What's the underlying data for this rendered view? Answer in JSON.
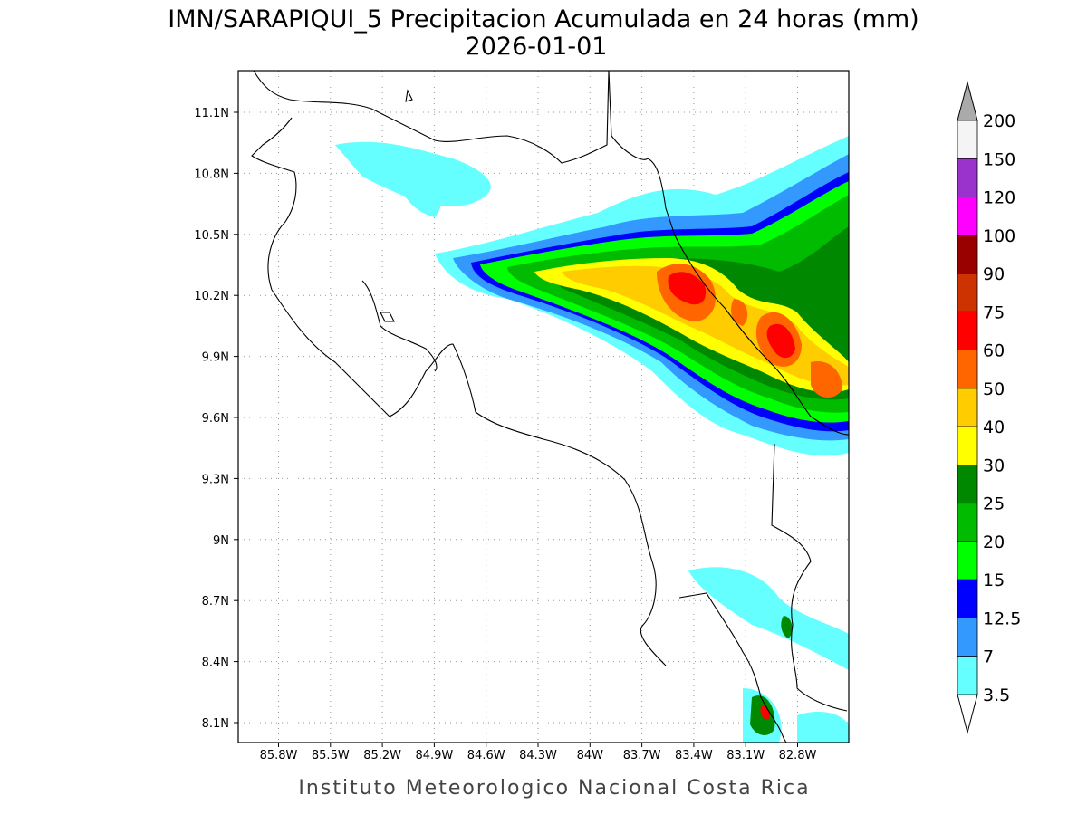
{
  "title": "IMN/SARAPIQUI_5 Precipitacion Acumulada en 24 horas (mm)",
  "subtitle": "2026-01-01",
  "lon_ticks": [
    "85.8W",
    "85.5W",
    "85.2W",
    "84.9W",
    "84.6W",
    "84.3W",
    "84W",
    "83.7W",
    "83.4W",
    "83.1W",
    "82.8W"
  ],
  "lat_ticks": [
    "11.1N",
    "10.8N",
    "10.5N",
    "10.2N",
    "9.9N",
    "9.6N",
    "9.3N",
    "9N",
    "8.7N",
    "8.4N",
    "8.1N"
  ],
  "colorbar": {
    "labels": [
      "200",
      "150",
      "120",
      "100",
      "90",
      "75",
      "60",
      "50",
      "40",
      "30",
      "25",
      "20",
      "15",
      "12.5",
      "7",
      "3.5"
    ],
    "colors": [
      "#f4f4f4",
      "#9933cc",
      "#ff00ff",
      "#990000",
      "#cc3300",
      "#ff0000",
      "#ff6600",
      "#ffcc00",
      "#ffff00",
      "#008800",
      "#00bb00",
      "#00ff00",
      "#0000ff",
      "#3399ff",
      "#66ffff"
    ],
    "over_color": "#aaaaaa",
    "under_color": "#ffffff"
  },
  "footer": "Instituto Meteorologico Nacional Costa Rica"
}
